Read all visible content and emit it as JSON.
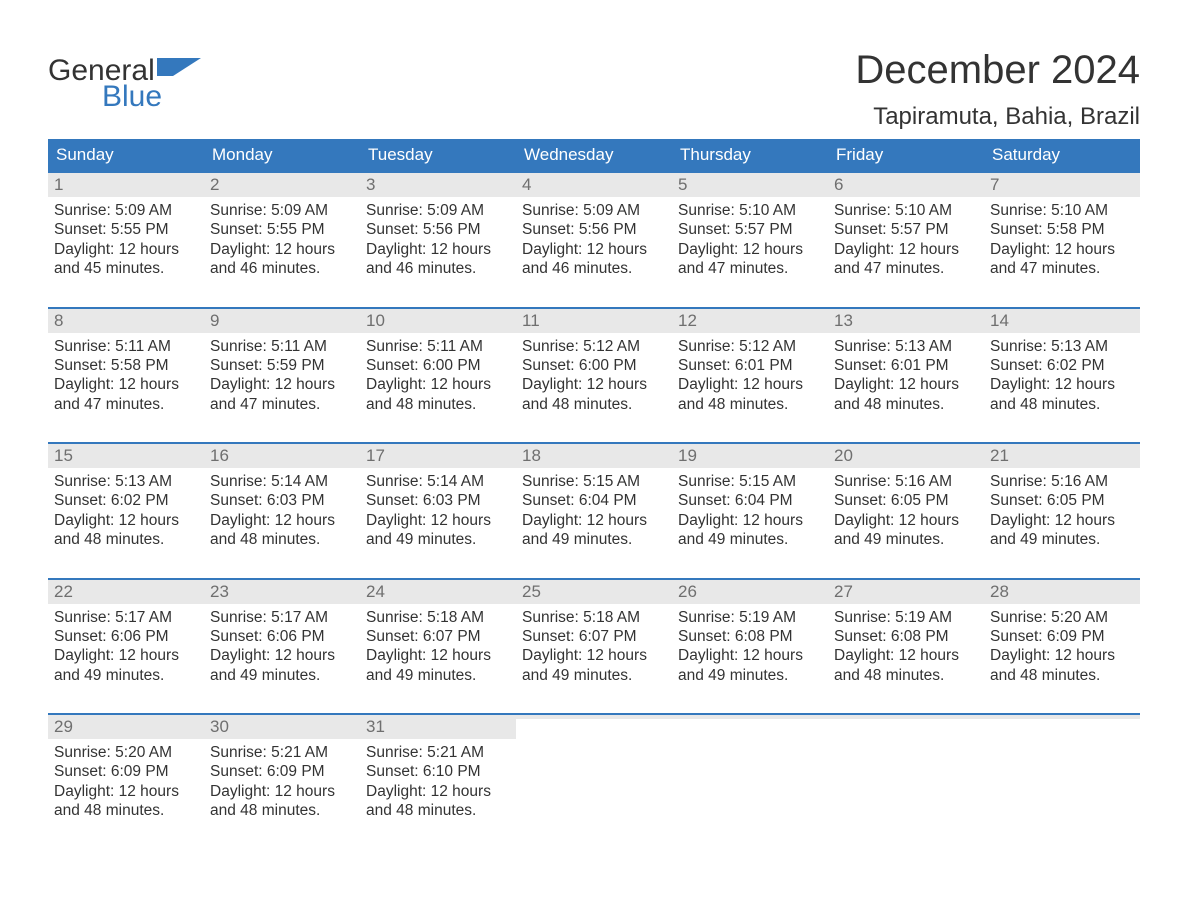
{
  "colors": {
    "brand_blue": "#3478bd",
    "header_text": "#333333",
    "daynum_bg": "#e8e8e8",
    "daynum_text": "#6f6f6f",
    "body_text": "#333333",
    "white": "#ffffff"
  },
  "typography": {
    "title_fontsize_pt": 30,
    "location_fontsize_pt": 18,
    "dayname_fontsize_pt": 13,
    "cell_fontsize_pt": 11.5
  },
  "logo": {
    "line1": "General",
    "line2": "Blue"
  },
  "title": "December 2024",
  "location": "Tapiramuta, Bahia, Brazil",
  "day_names": [
    "Sunday",
    "Monday",
    "Tuesday",
    "Wednesday",
    "Thursday",
    "Friday",
    "Saturday"
  ],
  "labels": {
    "sunrise": "Sunrise:",
    "sunset": "Sunset:",
    "daylight": "Daylight:",
    "hours_word": "hours",
    "and_word": "and",
    "minutes_word": "minutes."
  },
  "calendar": {
    "type": "table",
    "columns": 7,
    "weeks": [
      [
        {
          "n": 1,
          "sunrise": "5:09 AM",
          "sunset": "5:55 PM",
          "dl_h": 12,
          "dl_m": 45
        },
        {
          "n": 2,
          "sunrise": "5:09 AM",
          "sunset": "5:55 PM",
          "dl_h": 12,
          "dl_m": 46
        },
        {
          "n": 3,
          "sunrise": "5:09 AM",
          "sunset": "5:56 PM",
          "dl_h": 12,
          "dl_m": 46
        },
        {
          "n": 4,
          "sunrise": "5:09 AM",
          "sunset": "5:56 PM",
          "dl_h": 12,
          "dl_m": 46
        },
        {
          "n": 5,
          "sunrise": "5:10 AM",
          "sunset": "5:57 PM",
          "dl_h": 12,
          "dl_m": 47
        },
        {
          "n": 6,
          "sunrise": "5:10 AM",
          "sunset": "5:57 PM",
          "dl_h": 12,
          "dl_m": 47
        },
        {
          "n": 7,
          "sunrise": "5:10 AM",
          "sunset": "5:58 PM",
          "dl_h": 12,
          "dl_m": 47
        }
      ],
      [
        {
          "n": 8,
          "sunrise": "5:11 AM",
          "sunset": "5:58 PM",
          "dl_h": 12,
          "dl_m": 47
        },
        {
          "n": 9,
          "sunrise": "5:11 AM",
          "sunset": "5:59 PM",
          "dl_h": 12,
          "dl_m": 47
        },
        {
          "n": 10,
          "sunrise": "5:11 AM",
          "sunset": "6:00 PM",
          "dl_h": 12,
          "dl_m": 48
        },
        {
          "n": 11,
          "sunrise": "5:12 AM",
          "sunset": "6:00 PM",
          "dl_h": 12,
          "dl_m": 48
        },
        {
          "n": 12,
          "sunrise": "5:12 AM",
          "sunset": "6:01 PM",
          "dl_h": 12,
          "dl_m": 48
        },
        {
          "n": 13,
          "sunrise": "5:13 AM",
          "sunset": "6:01 PM",
          "dl_h": 12,
          "dl_m": 48
        },
        {
          "n": 14,
          "sunrise": "5:13 AM",
          "sunset": "6:02 PM",
          "dl_h": 12,
          "dl_m": 48
        }
      ],
      [
        {
          "n": 15,
          "sunrise": "5:13 AM",
          "sunset": "6:02 PM",
          "dl_h": 12,
          "dl_m": 48
        },
        {
          "n": 16,
          "sunrise": "5:14 AM",
          "sunset": "6:03 PM",
          "dl_h": 12,
          "dl_m": 48
        },
        {
          "n": 17,
          "sunrise": "5:14 AM",
          "sunset": "6:03 PM",
          "dl_h": 12,
          "dl_m": 49
        },
        {
          "n": 18,
          "sunrise": "5:15 AM",
          "sunset": "6:04 PM",
          "dl_h": 12,
          "dl_m": 49
        },
        {
          "n": 19,
          "sunrise": "5:15 AM",
          "sunset": "6:04 PM",
          "dl_h": 12,
          "dl_m": 49
        },
        {
          "n": 20,
          "sunrise": "5:16 AM",
          "sunset": "6:05 PM",
          "dl_h": 12,
          "dl_m": 49
        },
        {
          "n": 21,
          "sunrise": "5:16 AM",
          "sunset": "6:05 PM",
          "dl_h": 12,
          "dl_m": 49
        }
      ],
      [
        {
          "n": 22,
          "sunrise": "5:17 AM",
          "sunset": "6:06 PM",
          "dl_h": 12,
          "dl_m": 49
        },
        {
          "n": 23,
          "sunrise": "5:17 AM",
          "sunset": "6:06 PM",
          "dl_h": 12,
          "dl_m": 49
        },
        {
          "n": 24,
          "sunrise": "5:18 AM",
          "sunset": "6:07 PM",
          "dl_h": 12,
          "dl_m": 49
        },
        {
          "n": 25,
          "sunrise": "5:18 AM",
          "sunset": "6:07 PM",
          "dl_h": 12,
          "dl_m": 49
        },
        {
          "n": 26,
          "sunrise": "5:19 AM",
          "sunset": "6:08 PM",
          "dl_h": 12,
          "dl_m": 49
        },
        {
          "n": 27,
          "sunrise": "5:19 AM",
          "sunset": "6:08 PM",
          "dl_h": 12,
          "dl_m": 48
        },
        {
          "n": 28,
          "sunrise": "5:20 AM",
          "sunset": "6:09 PM",
          "dl_h": 12,
          "dl_m": 48
        }
      ],
      [
        {
          "n": 29,
          "sunrise": "5:20 AM",
          "sunset": "6:09 PM",
          "dl_h": 12,
          "dl_m": 48
        },
        {
          "n": 30,
          "sunrise": "5:21 AM",
          "sunset": "6:09 PM",
          "dl_h": 12,
          "dl_m": 48
        },
        {
          "n": 31,
          "sunrise": "5:21 AM",
          "sunset": "6:10 PM",
          "dl_h": 12,
          "dl_m": 48
        },
        null,
        null,
        null,
        null
      ]
    ]
  }
}
